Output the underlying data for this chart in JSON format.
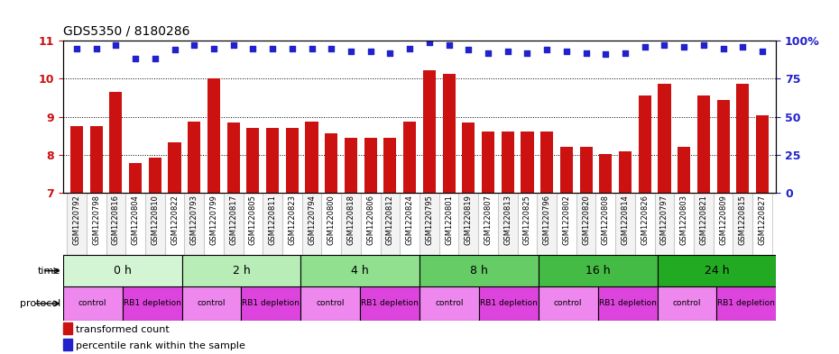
{
  "title": "GDS5350 / 8180286",
  "samples": [
    "GSM1220792",
    "GSM1220798",
    "GSM1220816",
    "GSM1220804",
    "GSM1220810",
    "GSM1220822",
    "GSM1220793",
    "GSM1220799",
    "GSM1220817",
    "GSM1220805",
    "GSM1220811",
    "GSM1220823",
    "GSM1220794",
    "GSM1220800",
    "GSM1220818",
    "GSM1220806",
    "GSM1220812",
    "GSM1220824",
    "GSM1220795",
    "GSM1220801",
    "GSM1220819",
    "GSM1220807",
    "GSM1220813",
    "GSM1220825",
    "GSM1220796",
    "GSM1220802",
    "GSM1220820",
    "GSM1220808",
    "GSM1220814",
    "GSM1220826",
    "GSM1220797",
    "GSM1220803",
    "GSM1220821",
    "GSM1220809",
    "GSM1220815",
    "GSM1220827"
  ],
  "bar_values": [
    8.75,
    8.75,
    9.65,
    7.78,
    7.92,
    8.33,
    8.88,
    10.02,
    8.84,
    8.72,
    8.72,
    8.72,
    8.88,
    8.56,
    8.45,
    8.45,
    8.44,
    8.88,
    10.22,
    10.12,
    8.84,
    8.62,
    8.62,
    8.62,
    8.62,
    8.22,
    8.2,
    8.02,
    8.1,
    9.55,
    9.88,
    8.22,
    9.55,
    9.45,
    9.88,
    9.05
  ],
  "percentile_values": [
    95,
    95,
    97,
    88,
    88,
    94,
    97,
    95,
    97,
    95,
    95,
    95,
    95,
    95,
    93,
    93,
    92,
    95,
    99,
    97,
    94,
    92,
    93,
    92,
    94,
    93,
    92,
    91,
    92,
    96,
    97,
    96,
    97,
    95,
    96,
    93
  ],
  "time_groups": [
    {
      "label": "0 h",
      "start": 0,
      "end": 6
    },
    {
      "label": "2 h",
      "start": 6,
      "end": 12
    },
    {
      "label": "4 h",
      "start": 12,
      "end": 18
    },
    {
      "label": "8 h",
      "start": 18,
      "end": 24
    },
    {
      "label": "16 h",
      "start": 24,
      "end": 30
    },
    {
      "label": "24 h",
      "start": 30,
      "end": 36
    }
  ],
  "time_colors": [
    "#d4f5d4",
    "#b8edb8",
    "#90e090",
    "#66cc66",
    "#44bb44",
    "#22aa22"
  ],
  "protocol_groups": [
    {
      "label": "control",
      "start": 0,
      "end": 3
    },
    {
      "label": "RB1 depletion",
      "start": 3,
      "end": 6
    },
    {
      "label": "control",
      "start": 6,
      "end": 9
    },
    {
      "label": "RB1 depletion",
      "start": 9,
      "end": 12
    },
    {
      "label": "control",
      "start": 12,
      "end": 15
    },
    {
      "label": "RB1 depletion",
      "start": 15,
      "end": 18
    },
    {
      "label": "control",
      "start": 18,
      "end": 21
    },
    {
      "label": "RB1 depletion",
      "start": 21,
      "end": 24
    },
    {
      "label": "control",
      "start": 24,
      "end": 27
    },
    {
      "label": "RB1 depletion",
      "start": 27,
      "end": 30
    },
    {
      "label": "control",
      "start": 30,
      "end": 33
    },
    {
      "label": "RB1 depletion",
      "start": 33,
      "end": 36
    }
  ],
  "control_color": "#ee88ee",
  "depletion_color": "#dd44dd",
  "bar_color": "#cc1111",
  "dot_color": "#2222cc",
  "ylim_left": [
    7,
    11
  ],
  "ylim_right": [
    0,
    100
  ],
  "yticks_left": [
    7,
    8,
    9,
    10,
    11
  ],
  "yticks_right": [
    0,
    25,
    50,
    75,
    100
  ],
  "yticklabels_right": [
    "0",
    "25",
    "50",
    "75",
    "100%"
  ],
  "legend_bar_label": "transformed count",
  "legend_dot_label": "percentile rank within the sample"
}
